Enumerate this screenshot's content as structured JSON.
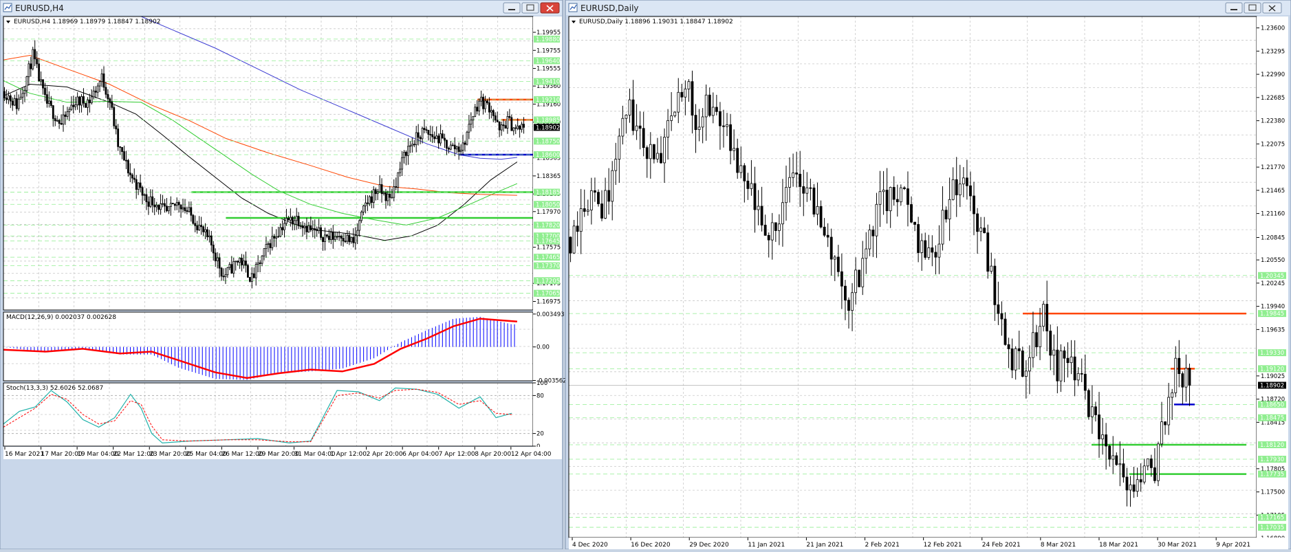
{
  "colors": {
    "window_frame": "#c9d7ea",
    "chart_bg": "#ffffff",
    "grid": "#c8c8c8",
    "bull": "#ffffff",
    "bear": "#000000",
    "level_badge": "#90ee90",
    "resistance": "#ff4500",
    "support_blue": "#0000cd",
    "support_green": "#32cd32",
    "ma_black": "#000000",
    "ma_red": "#ff4500",
    "ma_green": "#32cd32",
    "ma_blue": "#3c3cd2",
    "macd_hist": "#0000ff",
    "macd_signal": "#ff0000",
    "stoch_main": "#20b2aa",
    "stoch_signal": "#ff0000"
  },
  "icons": [
    "chart-window-icon",
    "minimize-icon",
    "maximize-icon",
    "close-icon"
  ],
  "windows": {
    "h4": {
      "title": "EURUSD,H4",
      "header": "EURUSD,H4  1.18969 1.18979 1.18847 1.18902"
    },
    "daily": {
      "title": "EURUSD,Daily",
      "header": "EURUSD,Daily  1.18896 1.19031 1.18847 1.18902"
    }
  },
  "chart_data": [
    {
      "type": "candlestick",
      "symbol": "EURUSD",
      "timeframe": "H4",
      "ohlc_header": "EURUSD,H4  1.18969 1.18979 1.18847 1.18902",
      "ylim": [
        1.1688,
        1.2013
      ],
      "price_ticks": [
        "1.19955",
        "1.19755",
        "1.19555",
        "1.19360",
        "1.19160",
        "1.18960",
        "1.18565",
        "1.18365",
        "1.18165",
        "1.17970",
        "1.17575",
        "1.17175",
        "1.16975"
      ],
      "level_badges": [
        "1.19880",
        "1.19640",
        "1.19410",
        "1.19210",
        "1.18985",
        "1.18750",
        "1.18600",
        "1.18185",
        "1.18050",
        "1.17820",
        "1.17700",
        "1.17645",
        "1.17465",
        "1.17370",
        "1.17205",
        "1.17065"
      ],
      "current_price": "1.18902",
      "x_labels": [
        "16 Mar 2021",
        "17 Mar 20:00",
        "19 Mar 04:00",
        "22 Mar 12:00",
        "23 Mar 20:00",
        "25 Mar 04:00",
        "26 Mar 12:00",
        "29 Mar 20:00",
        "31 Mar 04:00",
        "1 Apr 12:00",
        "2 Apr 20:00",
        "6 Apr 04:00",
        "7 Apr 12:00",
        "8 Apr 20:00",
        "12 Apr 04:00"
      ],
      "horizontal_levels": [
        {
          "color": "resistance",
          "price": 1.1921,
          "from": 0.895,
          "to": 1.0
        },
        {
          "color": "resistance",
          "price": 1.18985,
          "from": 0.94,
          "to": 1.0
        },
        {
          "color": "support_blue",
          "price": 1.186,
          "from": 0.86,
          "to": 1.0
        },
        {
          "color": "support_green",
          "price": 1.18185,
          "from": 0.355,
          "to": 1.0
        },
        {
          "color": "support_green",
          "price": 1.179,
          "from": 0.42,
          "to": 1.0
        }
      ],
      "candle_path": [
        [
          0,
          1.193
        ],
        [
          6,
          1.1915
        ],
        [
          10,
          1.1938
        ],
        [
          14,
          1.197
        ],
        [
          20,
          1.192
        ],
        [
          28,
          1.1893
        ],
        [
          34,
          1.1918
        ],
        [
          42,
          1.192
        ],
        [
          48,
          1.1945
        ],
        [
          52,
          1.192
        ],
        [
          56,
          1.187
        ],
        [
          62,
          1.1838
        ],
        [
          70,
          1.181
        ],
        [
          74,
          1.1808
        ],
        [
          80,
          1.1795
        ],
        [
          86,
          1.1808
        ],
        [
          94,
          1.1787
        ],
        [
          102,
          1.176
        ],
        [
          108,
          1.1725
        ],
        [
          116,
          1.1745
        ],
        [
          122,
          1.1722
        ],
        [
          130,
          1.176
        ],
        [
          138,
          1.1785
        ],
        [
          144,
          1.179
        ],
        [
          152,
          1.1775
        ],
        [
          160,
          1.1768
        ],
        [
          166,
          1.1772
        ],
        [
          172,
          1.1762
        ],
        [
          178,
          1.1805
        ],
        [
          184,
          1.1822
        ],
        [
          190,
          1.181
        ],
        [
          198,
          1.1865
        ],
        [
          206,
          1.1885
        ],
        [
          214,
          1.1878
        ],
        [
          220,
          1.1868
        ],
        [
          226,
          1.1868
        ],
        [
          230,
          1.19
        ],
        [
          234,
          1.192
        ],
        [
          240,
          1.1912
        ],
        [
          244,
          1.1885
        ],
        [
          248,
          1.1898
        ],
        [
          252,
          1.1888
        ],
        [
          256,
          1.18902
        ]
      ],
      "moving_averages": [
        {
          "color": "ma_black",
          "points": [
            [
              0,
              1.1925
            ],
            [
              0.05,
              1.1938
            ],
            [
              0.12,
              1.1935
            ],
            [
              0.2,
              1.1918
            ],
            [
              0.25,
              1.1905
            ],
            [
              0.3,
              1.1882
            ],
            [
              0.35,
              1.1858
            ],
            [
              0.4,
              1.1835
            ],
            [
              0.45,
              1.1812
            ],
            [
              0.5,
              1.1795
            ],
            [
              0.55,
              1.1783
            ],
            [
              0.6,
              1.1776
            ],
            [
              0.66,
              1.1772
            ],
            [
              0.72,
              1.1765
            ],
            [
              0.77,
              1.177
            ],
            [
              0.82,
              1.1782
            ],
            [
              0.87,
              1.1805
            ],
            [
              0.92,
              1.1832
            ],
            [
              0.97,
              1.1852
            ]
          ]
        },
        {
          "color": "ma_green",
          "points": [
            [
              0,
              1.1942
            ],
            [
              0.05,
              1.1928
            ],
            [
              0.12,
              1.1918
            ],
            [
              0.2,
              1.1919
            ],
            [
              0.26,
              1.1918
            ],
            [
              0.32,
              1.1898
            ],
            [
              0.37,
              1.1878
            ],
            [
              0.42,
              1.1858
            ],
            [
              0.47,
              1.1838
            ],
            [
              0.52,
              1.182
            ],
            [
              0.58,
              1.1805
            ],
            [
              0.64,
              1.1795
            ],
            [
              0.7,
              1.1788
            ],
            [
              0.76,
              1.1782
            ],
            [
              0.82,
              1.179
            ],
            [
              0.88,
              1.1805
            ],
            [
              0.93,
              1.1818
            ],
            [
              0.97,
              1.1828
            ]
          ]
        },
        {
          "color": "ma_red",
          "points": [
            [
              0,
              1.1965
            ],
            [
              0.05,
              1.197
            ],
            [
              0.12,
              1.1955
            ],
            [
              0.2,
              1.1938
            ],
            [
              0.28,
              1.1915
            ],
            [
              0.35,
              1.1898
            ],
            [
              0.42,
              1.1878
            ],
            [
              0.5,
              1.1862
            ],
            [
              0.58,
              1.1848
            ],
            [
              0.65,
              1.1835
            ],
            [
              0.72,
              1.1825
            ],
            [
              0.78,
              1.1822
            ],
            [
              0.84,
              1.1818
            ],
            [
              0.9,
              1.1816
            ],
            [
              0.97,
              1.1815
            ]
          ]
        },
        {
          "color": "ma_blue",
          "points": [
            [
              0.26,
              1.2013
            ],
            [
              0.32,
              1.1998
            ],
            [
              0.4,
              1.1978
            ],
            [
              0.48,
              1.1955
            ],
            [
              0.56,
              1.1932
            ],
            [
              0.64,
              1.1912
            ],
            [
              0.72,
              1.1892
            ],
            [
              0.8,
              1.1872
            ],
            [
              0.86,
              1.186
            ],
            [
              0.9,
              1.1856
            ],
            [
              0.94,
              1.1855
            ],
            [
              0.97,
              1.1857
            ]
          ]
        }
      ]
    },
    {
      "type": "bar",
      "indicator": "MACD",
      "header": "MACD(12,26,9) 0.002037 0.002628",
      "ylim": [
        -0.0036,
        0.0037
      ],
      "ticks": [
        "0.003493",
        "0.00",
        "-0.003562"
      ],
      "histogram_path": [
        [
          0,
          0
        ],
        [
          0.08,
          -0.0006
        ],
        [
          0.15,
          -0.0002
        ],
        [
          0.22,
          -0.0008
        ],
        [
          0.28,
          -0.0008
        ],
        [
          0.33,
          -0.0022
        ],
        [
          0.4,
          -0.0034
        ],
        [
          0.46,
          -0.0035
        ],
        [
          0.52,
          -0.0028
        ],
        [
          0.58,
          -0.0026
        ],
        [
          0.64,
          -0.0023
        ],
        [
          0.7,
          -0.0012
        ],
        [
          0.75,
          0.0005
        ],
        [
          0.8,
          0.0018
        ],
        [
          0.85,
          0.003
        ],
        [
          0.9,
          0.0032
        ],
        [
          0.96,
          0.0024
        ]
      ],
      "signal_path": [
        [
          0,
          -0.0003
        ],
        [
          0.08,
          -0.0005
        ],
        [
          0.15,
          -0.0002
        ],
        [
          0.22,
          -0.0007
        ],
        [
          0.28,
          -0.0005
        ],
        [
          0.33,
          -0.0014
        ],
        [
          0.4,
          -0.0027
        ],
        [
          0.46,
          -0.0033
        ],
        [
          0.52,
          -0.0028
        ],
        [
          0.58,
          -0.0024
        ],
        [
          0.64,
          -0.0026
        ],
        [
          0.7,
          -0.0018
        ],
        [
          0.75,
          -0.0002
        ],
        [
          0.8,
          0.0009
        ],
        [
          0.85,
          0.0022
        ],
        [
          0.9,
          0.003
        ],
        [
          0.97,
          0.0027
        ]
      ]
    },
    {
      "type": "line",
      "indicator": "Stochastic",
      "header": "Stoch(13,3,3) 52.6026 52.0687",
      "ylim": [
        0,
        100
      ],
      "ticks": [
        "100",
        "80",
        "20",
        "0"
      ],
      "main_path": [
        [
          0,
          35
        ],
        [
          0.03,
          55
        ],
        [
          0.06,
          62
        ],
        [
          0.09,
          88
        ],
        [
          0.12,
          70
        ],
        [
          0.15,
          42
        ],
        [
          0.18,
          30
        ],
        [
          0.21,
          45
        ],
        [
          0.24,
          82
        ],
        [
          0.26,
          60
        ],
        [
          0.28,
          20
        ],
        [
          0.3,
          5
        ],
        [
          0.35,
          8
        ],
        [
          0.42,
          10
        ],
        [
          0.48,
          12
        ],
        [
          0.54,
          5
        ],
        [
          0.58,
          8
        ],
        [
          0.63,
          88
        ],
        [
          0.67,
          86
        ],
        [
          0.71,
          72
        ],
        [
          0.74,
          92
        ],
        [
          0.78,
          90
        ],
        [
          0.82,
          82
        ],
        [
          0.86,
          60
        ],
        [
          0.9,
          78
        ],
        [
          0.93,
          45
        ],
        [
          0.96,
          52
        ]
      ],
      "signal_path": [
        [
          0,
          30
        ],
        [
          0.03,
          45
        ],
        [
          0.06,
          60
        ],
        [
          0.09,
          82
        ],
        [
          0.12,
          74
        ],
        [
          0.15,
          50
        ],
        [
          0.18,
          35
        ],
        [
          0.21,
          40
        ],
        [
          0.24,
          72
        ],
        [
          0.26,
          66
        ],
        [
          0.28,
          32
        ],
        [
          0.3,
          10
        ],
        [
          0.35,
          8
        ],
        [
          0.42,
          10
        ],
        [
          0.48,
          10
        ],
        [
          0.54,
          7
        ],
        [
          0.58,
          7
        ],
        [
          0.63,
          80
        ],
        [
          0.67,
          84
        ],
        [
          0.71,
          76
        ],
        [
          0.74,
          88
        ],
        [
          0.78,
          90
        ],
        [
          0.82,
          85
        ],
        [
          0.86,
          66
        ],
        [
          0.9,
          72
        ],
        [
          0.93,
          52
        ],
        [
          0.96,
          50
        ]
      ]
    },
    {
      "type": "candlestick",
      "symbol": "EURUSD",
      "timeframe": "Daily",
      "ohlc_header": "EURUSD,Daily  1.18896 1.19031 1.18847 1.18902",
      "ylim": [
        1.169,
        1.2375
      ],
      "price_ticks": [
        "1.23600",
        "1.23295",
        "1.22990",
        "1.22685",
        "1.22380",
        "1.22075",
        "1.21770",
        "1.21465",
        "1.21160",
        "1.20845",
        "1.20550",
        "1.20245",
        "1.19940",
        "1.19635",
        "1.19025",
        "1.18720",
        "1.18415",
        "1.17805",
        "1.17500",
        "1.17195",
        "1.16890"
      ],
      "level_badges": [
        "1.20345",
        "1.19845",
        "1.19330",
        "1.19120",
        "1.18650",
        "1.18475",
        "1.18120",
        "1.17930",
        "1.17735",
        "1.17165",
        "1.17035"
      ],
      "current_price": "1.18902",
      "x_labels": [
        "4 Dec 2020",
        "16 Dec 2020",
        "29 Dec 2020",
        "11 Jan 2021",
        "21 Jan 2021",
        "2 Feb 2021",
        "12 Feb 2021",
        "24 Feb 2021",
        "8 Mar 2021",
        "18 Mar 2021",
        "30 Mar 2021",
        "9 Apr 2021"
      ],
      "horizontal_levels": [
        {
          "color": "resistance",
          "price": 1.19845,
          "from": 0.66,
          "to": 0.985
        },
        {
          "color": "resistance",
          "price": 1.1912,
          "from": 0.875,
          "to": 0.91
        },
        {
          "color": "support_blue",
          "price": 1.1865,
          "from": 0.88,
          "to": 0.91
        },
        {
          "color": "support_green",
          "price": 1.1812,
          "from": 0.76,
          "to": 0.985
        },
        {
          "color": "support_green",
          "price": 1.17735,
          "from": 0.815,
          "to": 0.985
        }
      ],
      "candle_path": [
        [
          0,
          1.2085
        ],
        [
          4,
          1.2135
        ],
        [
          10,
          1.2128
        ],
        [
          16,
          1.2255
        ],
        [
          20,
          1.2215
        ],
        [
          26,
          1.2182
        ],
        [
          30,
          1.2255
        ],
        [
          34,
          1.2285
        ],
        [
          36,
          1.2235
        ],
        [
          40,
          1.2262
        ],
        [
          44,
          1.2232
        ],
        [
          48,
          1.2165
        ],
        [
          52,
          1.2138
        ],
        [
          56,
          1.2075
        ],
        [
          62,
          1.2145
        ],
        [
          66,
          1.2168
        ],
        [
          70,
          1.2125
        ],
        [
          76,
          1.2055
        ],
        [
          80,
          1.1998
        ],
        [
          84,
          1.2045
        ],
        [
          88,
          1.2125
        ],
        [
          92,
          1.2135
        ],
        [
          96,
          1.2135
        ],
        [
          100,
          1.2085
        ],
        [
          104,
          1.2055
        ],
        [
          108,
          1.2125
        ],
        [
          112,
          1.2158
        ],
        [
          116,
          1.212
        ],
        [
          120,
          1.2058
        ],
        [
          124,
          1.1965
        ],
        [
          128,
          1.192
        ],
        [
          132,
          1.1925
        ],
        [
          136,
          1.1985
        ],
        [
          140,
          1.191
        ],
        [
          144,
          1.1935
        ],
        [
          146,
          1.1898
        ],
        [
          150,
          1.1842
        ],
        [
          154,
          1.1805
        ],
        [
          158,
          1.1775
        ],
        [
          160,
          1.1738
        ],
        [
          164,
          1.1765
        ],
        [
          168,
          1.1785
        ],
        [
          172,
          1.1868
        ],
        [
          174,
          1.1915
        ],
        [
          176,
          1.1898
        ],
        [
          178,
          1.18902
        ]
      ]
    }
  ]
}
